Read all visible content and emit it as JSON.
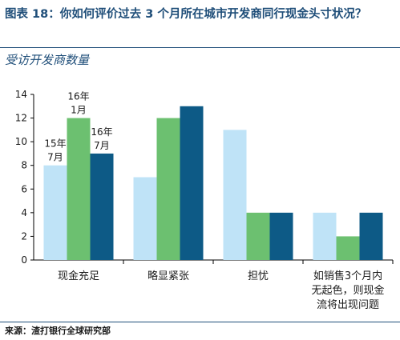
{
  "figure": {
    "title": "图表 18：你如何评价过去 3 个月所在城市开发商同行现金头寸状况？",
    "subtitle": "受访开发商数量",
    "source": "来源：渣打银行全球研究部"
  },
  "colors": {
    "title": "#1f4e79",
    "series": [
      "#bfe3f7",
      "#6cc070",
      "#0d5a86"
    ]
  },
  "chart_data": {
    "type": "bar",
    "categories": [
      [
        "现金充足"
      ],
      [
        "略显紧张"
      ],
      [
        "担忧"
      ],
      [
        "如销售3个月内",
        "无起色，则现金",
        "流将出现问题"
      ]
    ],
    "series": [
      {
        "name": "15年 7月",
        "values": [
          8,
          7,
          11,
          4
        ]
      },
      {
        "name": "16年 1月",
        "values": [
          12,
          12,
          4,
          2
        ]
      },
      {
        "name": "16年 7月",
        "values": [
          9,
          13,
          4,
          4
        ]
      }
    ],
    "ylim": [
      0,
      14
    ],
    "yticks": [
      0,
      2,
      4,
      6,
      8,
      10,
      12,
      14
    ],
    "series_labels": [
      [
        "15年",
        "7月"
      ],
      [
        "16年",
        "1月"
      ],
      [
        "16年",
        "7月"
      ]
    ],
    "legend": "inline labels above first group",
    "grid": false
  }
}
